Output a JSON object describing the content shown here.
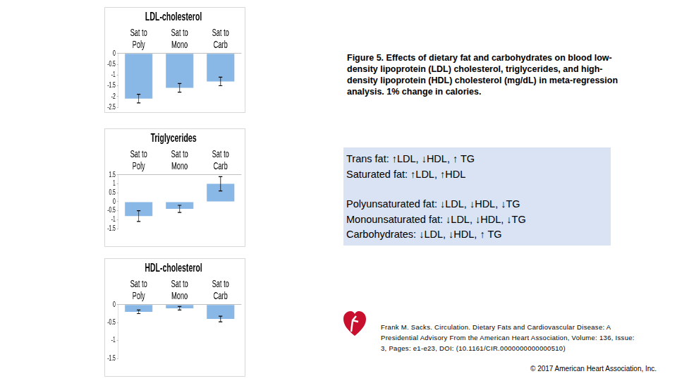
{
  "chart_data": [
    {
      "type": "bar",
      "title": "LDL-cholesterol",
      "categories": [
        "Sat to Poly",
        "Sat to Mono",
        "Sat to Carb"
      ],
      "values": [
        -2.1,
        -1.6,
        -1.3
      ],
      "errors": [
        0.2,
        0.2,
        0.2
      ],
      "color": "#8ab8e6",
      "ylim": [
        -2.5,
        0
      ],
      "yticks": [
        -2.5,
        -2,
        -1.5,
        -1,
        -0.5,
        0
      ],
      "grid": false
    },
    {
      "type": "bar",
      "title": "Triglycerides",
      "categories": [
        "Sat to Poly",
        "Sat to Mono",
        "Sat to Carb"
      ],
      "values": [
        -0.8,
        -0.4,
        1.0
      ],
      "errors": [
        0.3,
        0.2,
        0.4
      ],
      "color": "#8ab8e6",
      "ylim": [
        -1.5,
        1.5
      ],
      "yticks": [
        -1.5,
        -1,
        -0.5,
        0,
        0.5,
        1,
        1.5
      ],
      "grid": false
    },
    {
      "type": "bar",
      "title": "HDL-cholesterol",
      "categories": [
        "Sat to Poly",
        "Sat to Mono",
        "Sat to Carb"
      ],
      "values": [
        -0.2,
        -0.1,
        -0.4
      ],
      "errors": [
        0.05,
        0.05,
        0.08
      ],
      "color": "#8ab8e6",
      "ylim": [
        -1.5,
        0
      ],
      "yticks": [
        -1.5,
        -1,
        -0.5,
        0
      ],
      "grid": false
    }
  ],
  "caption": "Figure 5. Effects of dietary fat and carbohydrates on blood low-density lipoprotein (LDL) cholesterol, triglycerides, and high-density lipoprotein (HDL) cholesterol (mg/dL) in meta-regression analysis. 1% change in calories.",
  "summary": [
    [
      "Trans fat: ↑LDL, ↓HDL, ↑ TG",
      "Saturated fat: ↑LDL, ↑HDL"
    ],
    [
      "Polyunsaturated fat: ↓LDL, ↓HDL, ↓TG",
      "Monounsaturated fat: ↓LDL, ↓HDL, ↓TG",
      "Carbohydrates: ↓LDL, ↓HDL, ↑ TG"
    ]
  ],
  "citation": "Frank M. Sacks. Circulation. Dietary Fats and Cardiovascular Disease: A Presidential Advisory From the American Heart Association, Volume: 136, Issue: 3, Pages: e1-e23, DOI: (10.1161/CIR.0000000000000510)",
  "copyright": "© 2017 American Heart Association, Inc."
}
